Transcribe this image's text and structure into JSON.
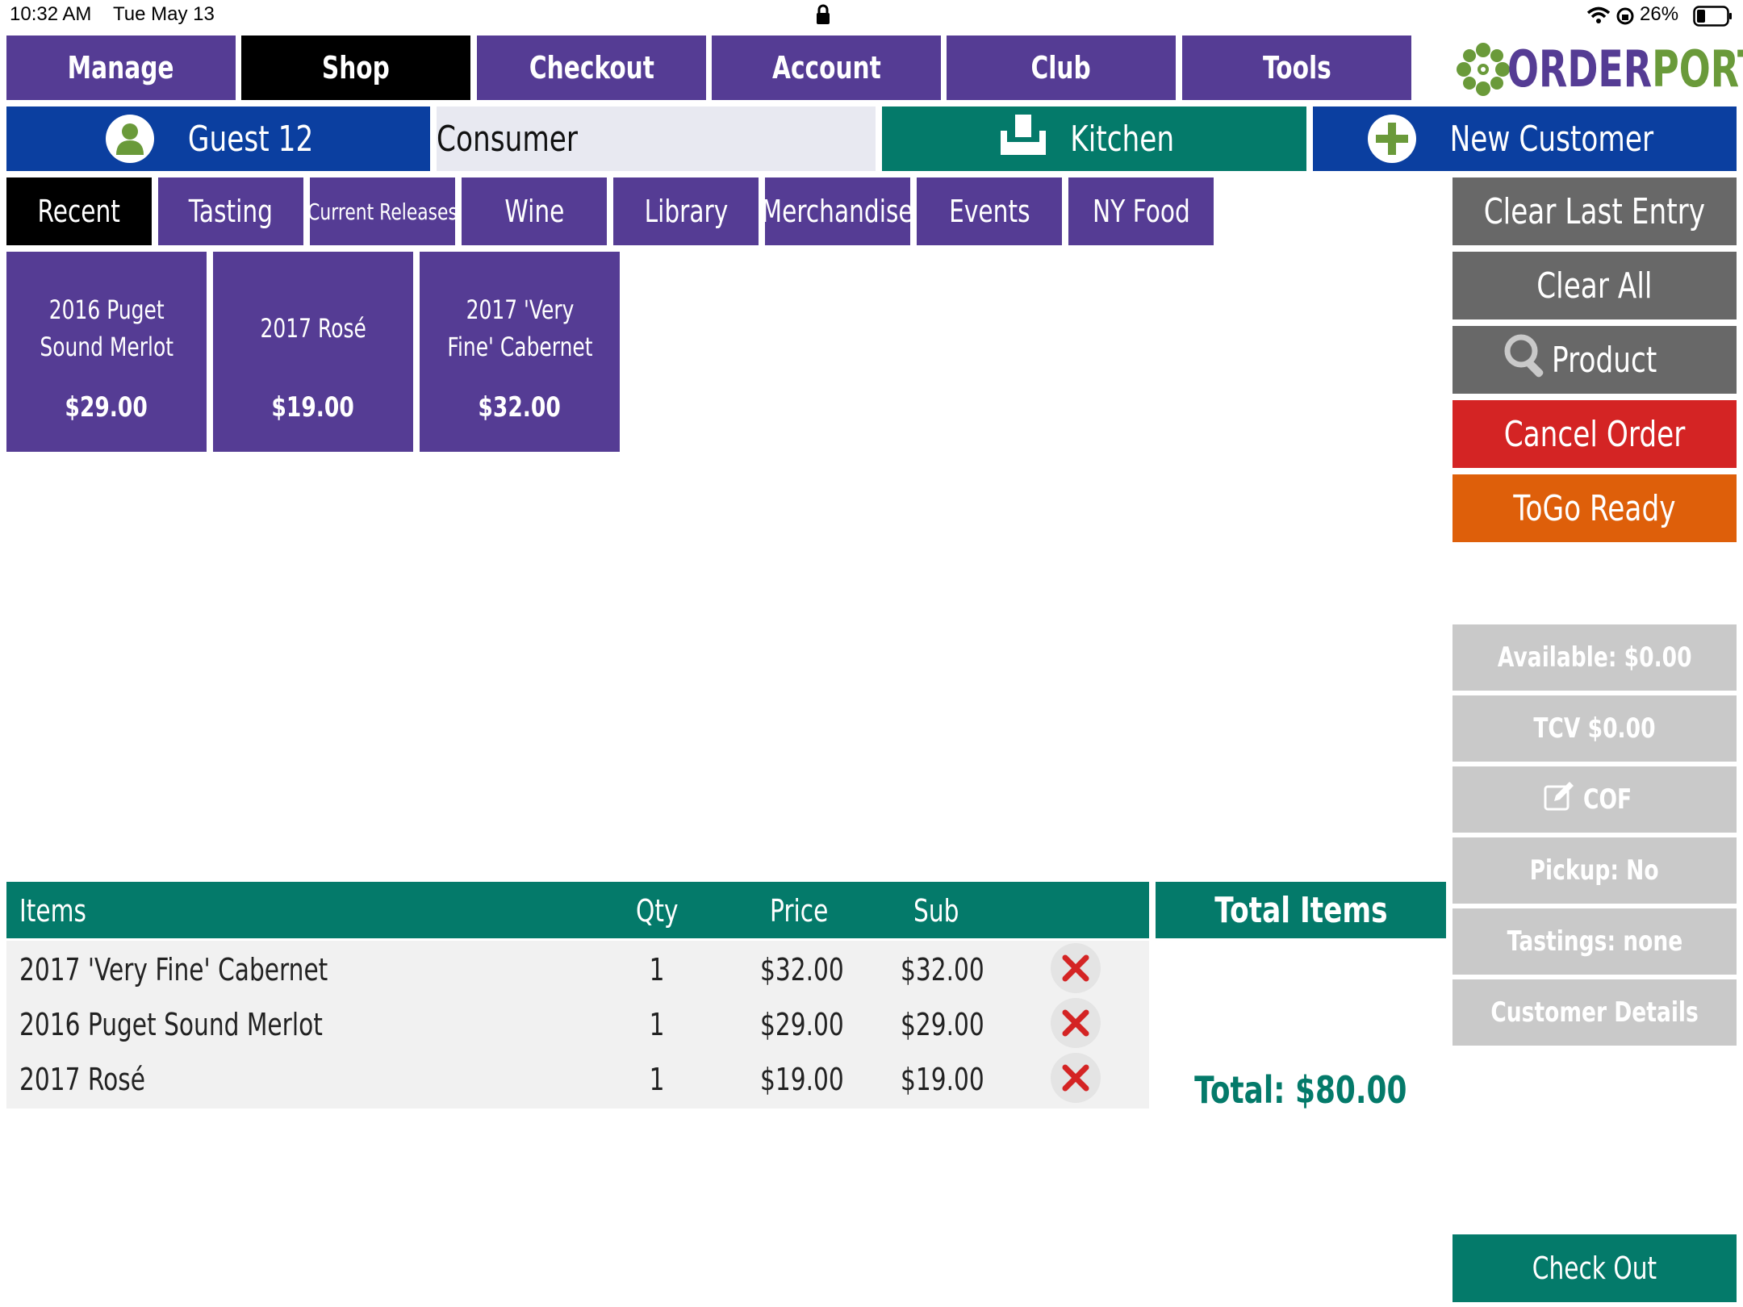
{
  "status_bar": {
    "time": "10:32 AM",
    "date": "Tue May 13",
    "battery": "26%"
  },
  "nav": [
    "Manage",
    "Shop",
    "Checkout",
    "Account",
    "Club",
    "Tools"
  ],
  "logo": {
    "text_a": "ORDER",
    "text_b": "PORT"
  },
  "customer": {
    "guest": "Guest 12",
    "type": "Consumer",
    "kitchen": "Kitchen",
    "new_customer": "New Customer"
  },
  "categories": [
    "Recent",
    "Tasting",
    "Current Releases",
    "Wine",
    "Library",
    "Merchandise",
    "Events",
    "NY Food"
  ],
  "products": [
    {
      "line1": "2016 Puget",
      "line2": "Sound Merlot",
      "price": "$29.00"
    },
    {
      "line1": "2017 Rosé",
      "line2": "",
      "price": "$19.00"
    },
    {
      "line1": "2017 'Very",
      "line2": "Fine' Cabernet",
      "price": "$32.00"
    }
  ],
  "actions": {
    "clear_last": "Clear Last Entry",
    "clear_all": "Clear All",
    "product": "Product",
    "cancel": "Cancel Order",
    "togo": "ToGo Ready",
    "checkout": "Check Out"
  },
  "info": {
    "available": "Available: $0.00",
    "tcv": "TCV $0.00",
    "cof": "COF",
    "pickup": "Pickup: No",
    "tastings": "Tastings: none",
    "details": "Customer Details"
  },
  "order": {
    "headers": {
      "items": "Items",
      "qty": "Qty",
      "price": "Price",
      "sub": "Sub"
    },
    "rows": [
      {
        "item": "2017 'Very Fine' Cabernet",
        "qty": "1",
        "price": "$32.00",
        "sub": "$32.00"
      },
      {
        "item": "2016 Puget Sound Merlot",
        "qty": "1",
        "price": "$29.00",
        "sub": "$29.00"
      },
      {
        "item": "2017 Rosé",
        "qty": "1",
        "price": "$19.00",
        "sub": "$19.00"
      }
    ],
    "total_items_label": "Total Items",
    "total": "Total: $80.00"
  },
  "colors": {
    "purple": "#553c94",
    "teal": "#047a6a",
    "blue": "#0b3fa0",
    "red": "#d42424",
    "orange": "#de5f0a",
    "gray": "#686868",
    "lightgray": "#c9c9c9"
  }
}
